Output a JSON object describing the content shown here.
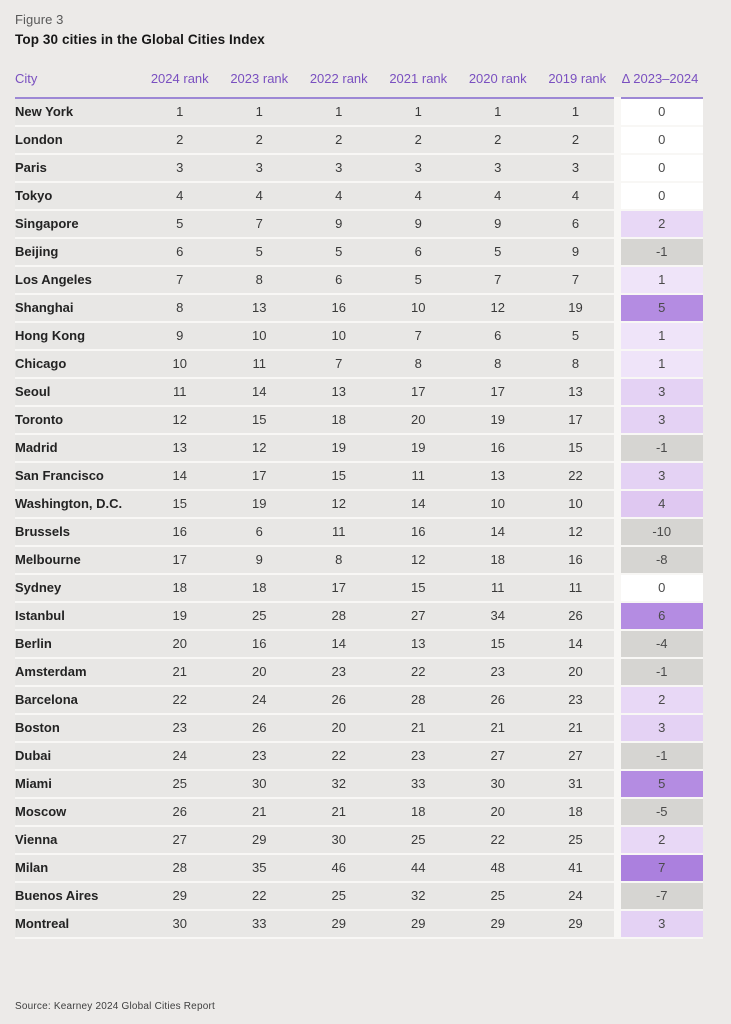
{
  "figure": {
    "label": "Figure 3",
    "title": "Top 30 cities in the Global Cities Index"
  },
  "source_note": "Source: Kearney 2024 Global Cities Report",
  "colors": {
    "page_background": "#eceae8",
    "row_background": "#e8e7e5",
    "header_text_purple": "#7a50c0",
    "header_rule_purple": "#9d88d5",
    "delta_bg": {
      "negative": "#d6d5d2",
      "positive": {
        "0": "#ffffff",
        "1": "#efe4f9",
        "2": "#e8d8f6",
        "3": "#e4d2f4",
        "4": "#dfc8f1",
        "5": "#b48ce2",
        "6": "#b48ce2",
        "7": "#ab80de"
      }
    }
  },
  "chart_data": {
    "type": "table",
    "title": "Top 30 cities in the Global Cities Index",
    "columns": [
      "City",
      "2024 rank",
      "2023 rank",
      "2022 rank",
      "2021 rank",
      "2020 rank",
      "2019 rank",
      "Δ 2023–2024"
    ],
    "rank_years": [
      "2024",
      "2023",
      "2022",
      "2021",
      "2020",
      "2019"
    ],
    "rows": [
      {
        "city": "New York",
        "ranks": [
          1,
          1,
          1,
          1,
          1,
          1
        ],
        "delta": 0
      },
      {
        "city": "London",
        "ranks": [
          2,
          2,
          2,
          2,
          2,
          2
        ],
        "delta": 0
      },
      {
        "city": "Paris",
        "ranks": [
          3,
          3,
          3,
          3,
          3,
          3
        ],
        "delta": 0
      },
      {
        "city": "Tokyo",
        "ranks": [
          4,
          4,
          4,
          4,
          4,
          4
        ],
        "delta": 0
      },
      {
        "city": "Singapore",
        "ranks": [
          5,
          7,
          9,
          9,
          9,
          6
        ],
        "delta": 2
      },
      {
        "city": "Beijing",
        "ranks": [
          6,
          5,
          5,
          6,
          5,
          9
        ],
        "delta": -1
      },
      {
        "city": "Los Angeles",
        "ranks": [
          7,
          8,
          6,
          5,
          7,
          7
        ],
        "delta": 1
      },
      {
        "city": "Shanghai",
        "ranks": [
          8,
          13,
          16,
          10,
          12,
          19
        ],
        "delta": 5
      },
      {
        "city": "Hong Kong",
        "ranks": [
          9,
          10,
          10,
          7,
          6,
          5
        ],
        "delta": 1
      },
      {
        "city": "Chicago",
        "ranks": [
          10,
          11,
          7,
          8,
          8,
          8
        ],
        "delta": 1
      },
      {
        "city": "Seoul",
        "ranks": [
          11,
          14,
          13,
          17,
          17,
          13
        ],
        "delta": 3
      },
      {
        "city": "Toronto",
        "ranks": [
          12,
          15,
          18,
          20,
          19,
          17
        ],
        "delta": 3
      },
      {
        "city": "Madrid",
        "ranks": [
          13,
          12,
          19,
          19,
          16,
          15
        ],
        "delta": -1
      },
      {
        "city": "San Francisco",
        "ranks": [
          14,
          17,
          15,
          11,
          13,
          22
        ],
        "delta": 3
      },
      {
        "city": "Washington, D.C.",
        "ranks": [
          15,
          19,
          12,
          14,
          10,
          10
        ],
        "delta": 4
      },
      {
        "city": "Brussels",
        "ranks": [
          16,
          6,
          11,
          16,
          14,
          12
        ],
        "delta": -10
      },
      {
        "city": "Melbourne",
        "ranks": [
          17,
          9,
          8,
          12,
          18,
          16
        ],
        "delta": -8
      },
      {
        "city": "Sydney",
        "ranks": [
          18,
          18,
          17,
          15,
          11,
          11
        ],
        "delta": 0
      },
      {
        "city": "Istanbul",
        "ranks": [
          19,
          25,
          28,
          27,
          34,
          26
        ],
        "delta": 6
      },
      {
        "city": "Berlin",
        "ranks": [
          20,
          16,
          14,
          13,
          15,
          14
        ],
        "delta": -4
      },
      {
        "city": "Amsterdam",
        "ranks": [
          21,
          20,
          23,
          22,
          23,
          20
        ],
        "delta": -1
      },
      {
        "city": "Barcelona",
        "ranks": [
          22,
          24,
          26,
          28,
          26,
          23
        ],
        "delta": 2
      },
      {
        "city": "Boston",
        "ranks": [
          23,
          26,
          20,
          21,
          21,
          21
        ],
        "delta": 3
      },
      {
        "city": "Dubai",
        "ranks": [
          24,
          23,
          22,
          23,
          27,
          27
        ],
        "delta": -1
      },
      {
        "city": "Miami",
        "ranks": [
          25,
          30,
          32,
          33,
          30,
          31
        ],
        "delta": 5
      },
      {
        "city": "Moscow",
        "ranks": [
          26,
          21,
          21,
          18,
          20,
          18
        ],
        "delta": -5
      },
      {
        "city": "Vienna",
        "ranks": [
          27,
          29,
          30,
          25,
          22,
          25
        ],
        "delta": 2
      },
      {
        "city": "Milan",
        "ranks": [
          28,
          35,
          46,
          44,
          48,
          41
        ],
        "delta": 7
      },
      {
        "city": "Buenos Aires",
        "ranks": [
          29,
          22,
          25,
          32,
          25,
          24
        ],
        "delta": -7
      },
      {
        "city": "Montreal",
        "ranks": [
          30,
          33,
          29,
          29,
          29,
          29
        ],
        "delta": 3
      }
    ]
  }
}
